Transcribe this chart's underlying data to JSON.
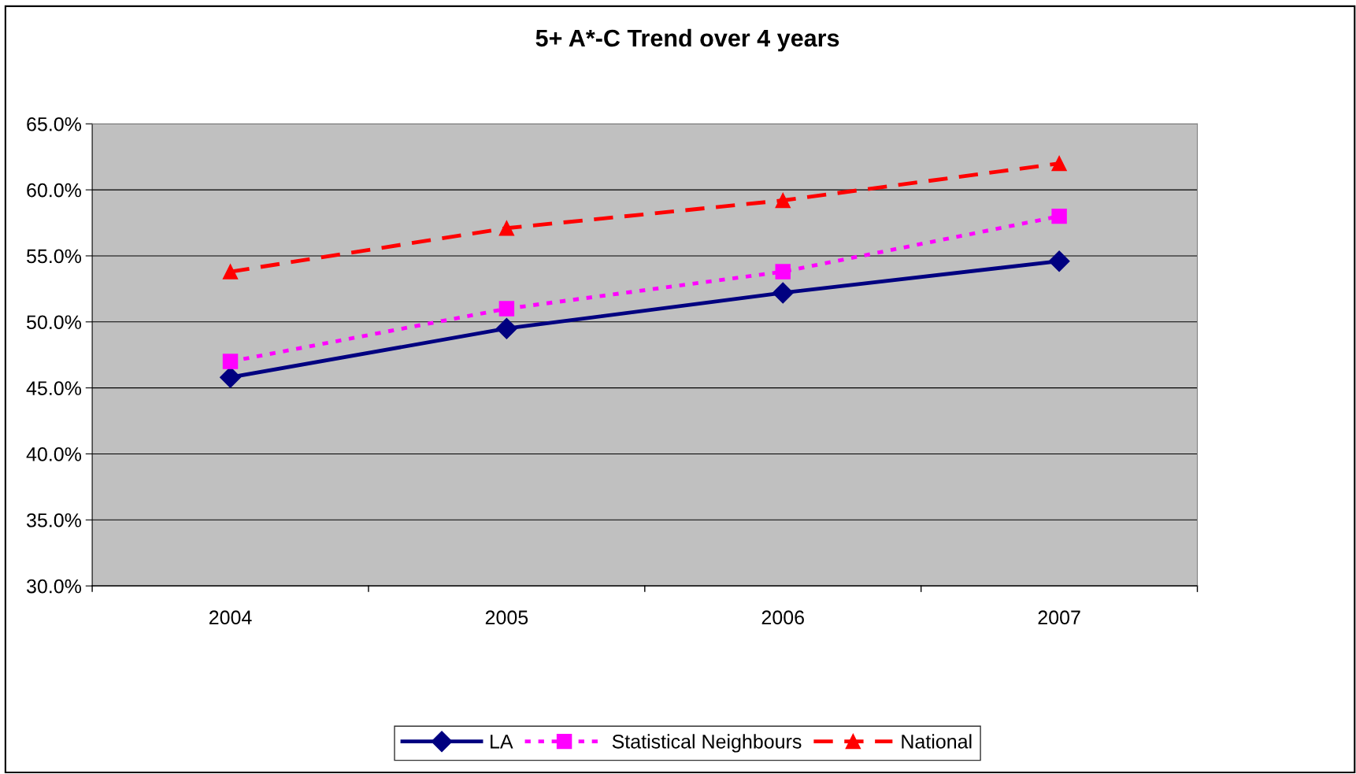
{
  "chart_data": {
    "type": "line",
    "title": "5+ A*-C Trend over 4 years",
    "categories": [
      "2004",
      "2005",
      "2006",
      "2007"
    ],
    "series": [
      {
        "name": "LA",
        "color": "#000080",
        "values": [
          45.8,
          49.5,
          52.2,
          54.6
        ],
        "line_style": "solid",
        "marker": "diamond"
      },
      {
        "name": "Statistical Neighbours",
        "color": "#ff00ff",
        "values": [
          47.0,
          51.0,
          53.8,
          58.0
        ],
        "line_style": "dotted",
        "marker": "square"
      },
      {
        "name": "National",
        "color": "#ff0000",
        "values": [
          53.8,
          57.1,
          59.2,
          62.0
        ],
        "line_style": "dashed",
        "marker": "triangle"
      }
    ],
    "ylim": [
      30,
      65
    ],
    "yticks": [
      {
        "value": 30,
        "label": "30.0%"
      },
      {
        "value": 35,
        "label": "35.0%"
      },
      {
        "value": 40,
        "label": "40.0%"
      },
      {
        "value": 45,
        "label": "45.0%"
      },
      {
        "value": 50,
        "label": "50.0%"
      },
      {
        "value": 55,
        "label": "55.0%"
      },
      {
        "value": 60,
        "label": "60.0%"
      },
      {
        "value": 65,
        "label": "65.0%"
      }
    ],
    "grid": "y",
    "legend": "bottom"
  }
}
